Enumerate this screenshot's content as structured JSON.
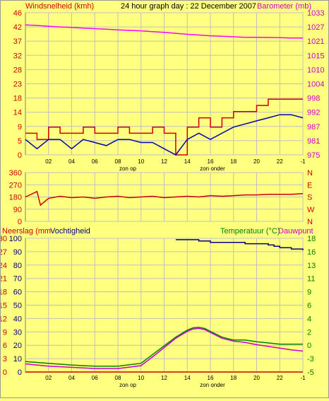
{
  "header": {
    "title": "24 hour graph day : 22 December 2007",
    "left_label": "Windsnelheid (kmh)",
    "right_label": "Barometer (mb)"
  },
  "colors": {
    "background": "#FFFF80",
    "grid": "#C0C0C0",
    "wind_gust": "#CC0000",
    "wind_avg": "#0000AA",
    "barometer": "#FF00FF",
    "direction": "#CC0000",
    "rain": "#CC0000",
    "humidity": "#000080",
    "temperature": "#008000",
    "dewpoint": "#CC00CC",
    "left_axis_text": "#CC0000",
    "right_axis_text_baro": "#CC00CC",
    "right_axis_text_temp": "#008000"
  },
  "x_axis": {
    "ticks": [
      "02",
      "04",
      "06",
      "08",
      "10",
      "12",
      "14",
      "16",
      "18",
      "20",
      "22",
      "-1"
    ],
    "sunrise_label": "zon op",
    "sunset_label": "zon onder"
  },
  "chart_data": [
    {
      "type": "line",
      "title": "24 hour graph day : 22 December 2007",
      "ylabel": "Windsnelheid (kmh)",
      "ylabel_right": "Barometer (mb)",
      "ylim": [
        0,
        46
      ],
      "ylim_right": [
        975,
        1033
      ],
      "y_ticks": [
        "0",
        "5",
        "9",
        "14",
        "18",
        "23",
        "28",
        "32",
        "37",
        "42",
        "46"
      ],
      "y_ticks_right": [
        "975",
        "981",
        "987",
        "992",
        "998",
        "1004",
        "1010",
        "1015",
        "1021",
        "1027",
        "1033"
      ],
      "x_hours": [
        0,
        1,
        2,
        3,
        4,
        5,
        6,
        7,
        8,
        9,
        10,
        11,
        12,
        13,
        14,
        15,
        16,
        17,
        18,
        19,
        20,
        21,
        22,
        23,
        24
      ],
      "series": [
        {
          "key": "gust",
          "values": [
            7,
            5,
            9,
            7,
            7,
            9,
            7,
            7,
            9,
            7,
            7,
            9,
            7,
            0,
            9,
            12,
            9,
            12,
            14,
            14,
            16,
            18,
            18,
            18,
            18
          ]
        },
        {
          "key": "avg",
          "values": [
            5,
            2,
            5,
            5,
            2,
            5,
            4,
            3,
            5,
            5,
            4,
            4,
            2,
            0,
            5,
            7,
            5,
            7,
            9,
            10,
            11,
            12,
            13,
            13,
            12
          ]
        },
        {
          "key": "barometer",
          "axis": "right",
          "values": [
            1028,
            1027.8,
            1027.5,
            1027.2,
            1027,
            1026.7,
            1026.5,
            1026.3,
            1026,
            1025.8,
            1025.6,
            1025.3,
            1025,
            1024.6,
            1024.2,
            1023.9,
            1023.6,
            1023.4,
            1023.2,
            1023,
            1023,
            1022.9,
            1022.8,
            1022.7,
            1022.7
          ]
        }
      ]
    },
    {
      "type": "line",
      "ylim": [
        0,
        360
      ],
      "y_ticks": [
        "0",
        "90",
        "180",
        "270",
        "360"
      ],
      "y_ticks_right": [
        "N",
        "W",
        "S",
        "E",
        "N"
      ],
      "x_hours": [
        0,
        0.5,
        1,
        1.3,
        2,
        3,
        4,
        5,
        6,
        7,
        8,
        9,
        10,
        11,
        12,
        13,
        14,
        15,
        16,
        17,
        18,
        19,
        20,
        21,
        22,
        23,
        24
      ],
      "series": [
        {
          "key": "direction",
          "values": [
            180,
            200,
            220,
            120,
            170,
            185,
            175,
            180,
            170,
            180,
            185,
            175,
            180,
            185,
            175,
            180,
            185,
            180,
            190,
            185,
            190,
            195,
            195,
            200,
            200,
            200,
            205
          ]
        }
      ]
    },
    {
      "type": "line",
      "ylabel": "Neerslag (mm",
      "ylabel_second": "Vochtigheid",
      "ylabel_right": "Temperatuur (°C)",
      "ylabel_right_second": "Dauwpunt",
      "ylim": [
        0,
        100
      ],
      "ylim_right": [
        -5,
        18
      ],
      "y_ticks_rain": [
        "0",
        "3",
        "6",
        "9",
        "12",
        "15",
        "18",
        "21",
        "24",
        "27",
        "30"
      ],
      "y_ticks_humidity": [
        "0",
        "10",
        "20",
        "30",
        "40",
        "50",
        "60",
        "70",
        "80",
        "90",
        "100"
      ],
      "y_ticks_right": [
        "-5",
        "-3",
        "0",
        "2",
        "4",
        "6",
        "9",
        "11",
        "13",
        "16",
        "18"
      ],
      "x_hours": [
        0,
        2,
        4,
        6,
        8,
        10,
        11,
        12,
        13,
        14,
        14.5,
        15,
        15.5,
        16,
        17,
        18,
        19,
        20,
        21,
        22,
        23,
        24
      ],
      "series": [
        {
          "key": "rain",
          "values": [
            0,
            0,
            0,
            0,
            0,
            0,
            0,
            0,
            0,
            0,
            0,
            0,
            0,
            0,
            0,
            0,
            0,
            0,
            0,
            0,
            0,
            0
          ]
        },
        {
          "key": "humidity",
          "x_hours": [
            13,
            14,
            15,
            16,
            17,
            18,
            19,
            20,
            21,
            21.5,
            22,
            23,
            24
          ],
          "values": [
            99,
            99,
            98,
            97,
            97,
            97,
            96,
            96,
            95,
            94,
            93,
            92,
            91
          ]
        },
        {
          "key": "temperature",
          "axis": "right",
          "values": [
            -3.2,
            -3.5,
            -3.8,
            -4,
            -4,
            -3.5,
            -2,
            -0.5,
            1,
            2.2,
            2.6,
            2.7,
            2.5,
            2,
            1,
            0.5,
            0.5,
            0.2,
            0,
            -0.2,
            -0.2,
            -0.2
          ]
        },
        {
          "key": "dewpoint",
          "axis": "right",
          "values": [
            -3.6,
            -4,
            -4.2,
            -4.4,
            -4.4,
            -3.9,
            -2.4,
            -0.8,
            0.8,
            2,
            2.4,
            2.5,
            2.3,
            1.8,
            0.8,
            0.3,
            0.1,
            -0.3,
            -0.6,
            -0.9,
            -1.2,
            -1.4
          ]
        }
      ]
    }
  ]
}
